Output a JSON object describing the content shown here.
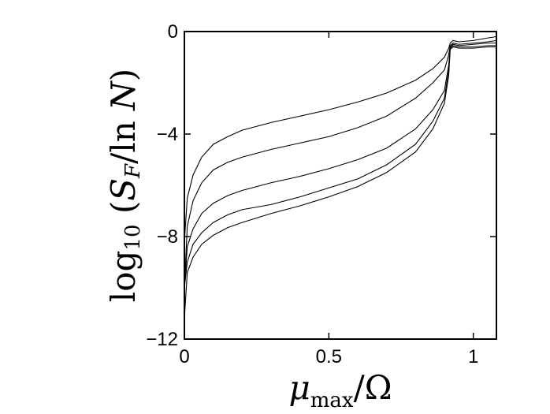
{
  "chart_data": {
    "type": "line",
    "title": "",
    "xlabel": "μ_max/Ω",
    "ylabel": "log10 (S_F/ln N)",
    "xlim": [
      0,
      1.08
    ],
    "ylim": [
      -12,
      0
    ],
    "x_ticks": [
      {
        "value": 0,
        "label": "0"
      },
      {
        "value": 0.5,
        "label": "0.5"
      },
      {
        "value": 1,
        "label": "1"
      }
    ],
    "y_ticks": [
      {
        "value": 0,
        "label": "0"
      },
      {
        "value": -4,
        "label": "−4"
      },
      {
        "value": -8,
        "label": "−8"
      },
      {
        "value": -12,
        "label": "−12"
      }
    ],
    "grid": false,
    "legend": "none",
    "series": [
      {
        "x": [
          0,
          0.01,
          0.03,
          0.06,
          0.1,
          0.15,
          0.2,
          0.3,
          0.4,
          0.5,
          0.6,
          0.7,
          0.8,
          0.86,
          0.9,
          0.915,
          0.92,
          0.93,
          0.95,
          1.0,
          1.05,
          1.08
        ],
        "y": [
          -8.2,
          -6.5,
          -5.6,
          -4.9,
          -4.4,
          -4.1,
          -3.85,
          -3.55,
          -3.3,
          -3.05,
          -2.75,
          -2.4,
          -1.9,
          -1.45,
          -1.0,
          -0.65,
          -0.45,
          -0.35,
          -0.4,
          -0.35,
          -0.25,
          -0.2
        ]
      },
      {
        "x": [
          0,
          0.01,
          0.03,
          0.06,
          0.1,
          0.15,
          0.2,
          0.3,
          0.4,
          0.5,
          0.6,
          0.7,
          0.8,
          0.86,
          0.9,
          0.915,
          0.92,
          0.93,
          0.95,
          1.0,
          1.05,
          1.08
        ],
        "y": [
          -10.0,
          -7.6,
          -6.6,
          -5.9,
          -5.4,
          -5.1,
          -4.9,
          -4.6,
          -4.35,
          -4.1,
          -3.75,
          -3.3,
          -2.6,
          -2.0,
          -1.5,
          -0.9,
          -0.55,
          -0.45,
          -0.5,
          -0.45,
          -0.4,
          -0.35
        ]
      },
      {
        "x": [
          0,
          0.01,
          0.03,
          0.06,
          0.1,
          0.15,
          0.2,
          0.3,
          0.4,
          0.5,
          0.6,
          0.7,
          0.8,
          0.86,
          0.9,
          0.915,
          0.92,
          0.93,
          0.95,
          1.0,
          1.05,
          1.08
        ],
        "y": [
          -10.0,
          -8.4,
          -7.7,
          -7.1,
          -6.7,
          -6.4,
          -6.2,
          -5.9,
          -5.65,
          -5.35,
          -5.0,
          -4.55,
          -3.8,
          -3.05,
          -2.3,
          -1.3,
          -0.6,
          -0.5,
          -0.55,
          -0.5,
          -0.45,
          -0.45
        ]
      },
      {
        "x": [
          0,
          0.01,
          0.03,
          0.06,
          0.1,
          0.15,
          0.2,
          0.3,
          0.4,
          0.5,
          0.6,
          0.7,
          0.8,
          0.86,
          0.9,
          0.915,
          0.92,
          0.93,
          0.95,
          1.0,
          1.05,
          1.08
        ],
        "y": [
          -10.0,
          -9.0,
          -8.3,
          -7.85,
          -7.45,
          -7.15,
          -6.95,
          -6.75,
          -6.45,
          -6.1,
          -5.75,
          -5.2,
          -4.4,
          -3.5,
          -2.6,
          -1.5,
          -0.65,
          -0.55,
          -0.6,
          -0.6,
          -0.55,
          -0.55
        ]
      },
      {
        "x": [
          0,
          0.01,
          0.03,
          0.06,
          0.1,
          0.15,
          0.2,
          0.3,
          0.4,
          0.5,
          0.6,
          0.7,
          0.8,
          0.86,
          0.9,
          0.915,
          0.92,
          0.93,
          0.95,
          1.0,
          1.05,
          1.08
        ],
        "y": [
          -11.2,
          -9.4,
          -8.8,
          -8.3,
          -7.95,
          -7.65,
          -7.45,
          -7.1,
          -6.8,
          -6.45,
          -6.05,
          -5.5,
          -4.7,
          -3.8,
          -2.8,
          -1.7,
          -0.7,
          -0.6,
          -0.65,
          -0.65,
          -0.6,
          -0.6
        ]
      }
    ]
  }
}
